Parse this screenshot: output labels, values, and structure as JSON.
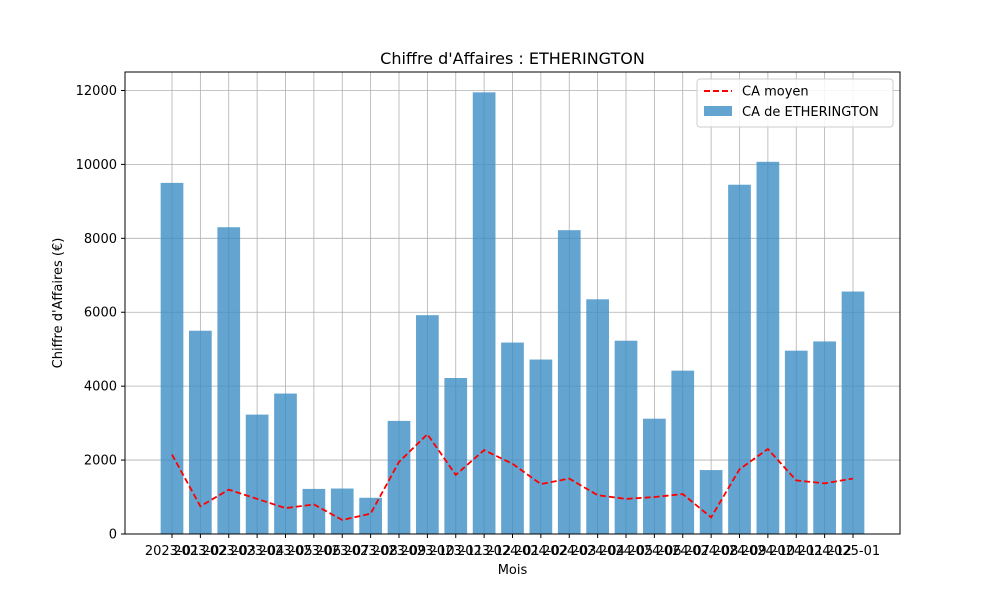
{
  "chart_data": {
    "type": "bar",
    "title": "Chiffre d'Affaires : ETHERINGTON",
    "xlabel": "Mois",
    "ylabel": "Chiffre d'Affaires (€)",
    "ylim": [
      0,
      12500
    ],
    "yticks": [
      0,
      2000,
      4000,
      6000,
      8000,
      10000,
      12000
    ],
    "grid": true,
    "legend_position": "top-right",
    "categories": [
      "2023-01",
      "2023-02",
      "2023-03",
      "2023-04",
      "2023-05",
      "2023-06",
      "2023-07",
      "2023-08",
      "2023-09",
      "2023-10",
      "2023-11",
      "2023-12",
      "2024-01",
      "2024-02",
      "2024-03",
      "2024-04",
      "2024-05",
      "2024-06",
      "2024-07",
      "2024-08",
      "2024-09",
      "2024-10",
      "2024-11",
      "2024-12",
      "2025-01"
    ],
    "series": [
      {
        "name": "CA moyen",
        "type": "line",
        "style": "dashed",
        "color": "#ff0000",
        "values": [
          2150,
          750,
          1200,
          950,
          700,
          800,
          380,
          550,
          1950,
          2700,
          1600,
          2270,
          1900,
          1350,
          1500,
          1050,
          950,
          1000,
          1080,
          450,
          1750,
          2300,
          1450,
          1370,
          1500
        ]
      },
      {
        "name": "CA de ETHERINGTON",
        "type": "bar",
        "color": "#3c8dc4",
        "values": [
          9500,
          5500,
          8300,
          3230,
          3800,
          1220,
          1230,
          980,
          3060,
          5920,
          4220,
          11950,
          5180,
          4720,
          8220,
          6350,
          5230,
          3120,
          4420,
          1730,
          9450,
          10070,
          4960,
          5210,
          6560
        ]
      }
    ]
  }
}
